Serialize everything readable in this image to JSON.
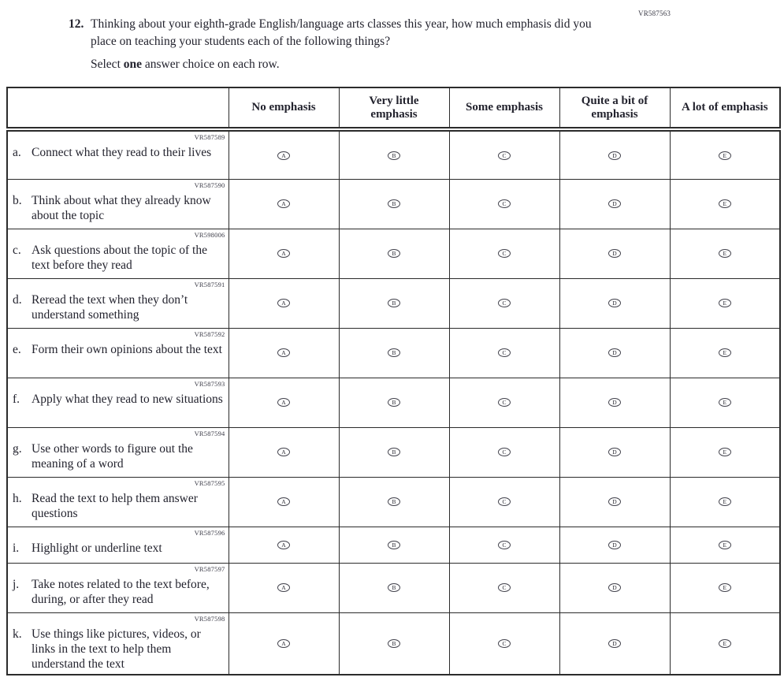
{
  "colors": {
    "ink": "#23232e",
    "border": "#2b2b2b"
  },
  "page": {
    "top_right_code": "VR587563"
  },
  "question": {
    "number": "12.",
    "text": "Thinking about your eighth-grade English/language arts classes this year, how much emphasis did you place on teaching your students each of the following things?",
    "select_prefix": "Select ",
    "select_bold": "one",
    "select_suffix": " answer choice on each row."
  },
  "table": {
    "columns": [
      "No emphasis",
      "Very little emphasis",
      "Some emphasis",
      "Quite a bit of emphasis",
      "A lot of emphasis"
    ],
    "option_letters": [
      "A",
      "B",
      "C",
      "D",
      "E"
    ],
    "rows": [
      {
        "code": "VR587589",
        "letter": "a.",
        "label": "Connect what they read to their lives"
      },
      {
        "code": "VR587590",
        "letter": "b.",
        "label": "Think about what they already know about the topic"
      },
      {
        "code": "VR598006",
        "letter": "c.",
        "label": "Ask questions about the topic of the text before they read"
      },
      {
        "code": "VR587591",
        "letter": "d.",
        "label": "Reread the text when they don’t understand something"
      },
      {
        "code": "VR587592",
        "letter": "e.",
        "label": "Form their own opinions about the text"
      },
      {
        "code": "VR587593",
        "letter": "f.",
        "label": "Apply what they read to new situations"
      },
      {
        "code": "VR587594",
        "letter": "g.",
        "label": "Use other words to figure out the meaning of a word"
      },
      {
        "code": "VR587595",
        "letter": "h.",
        "label": "Read the text to help them answer questions"
      },
      {
        "code": "VR587596",
        "letter": "i.",
        "label": "Highlight or underline text"
      },
      {
        "code": "VR587597",
        "letter": "j.",
        "label": "Take notes related to the text before, during, or after they read"
      },
      {
        "code": "VR587598",
        "letter": "k.",
        "label": "Use things like pictures, videos, or links in the text to help them understand the text"
      }
    ]
  }
}
